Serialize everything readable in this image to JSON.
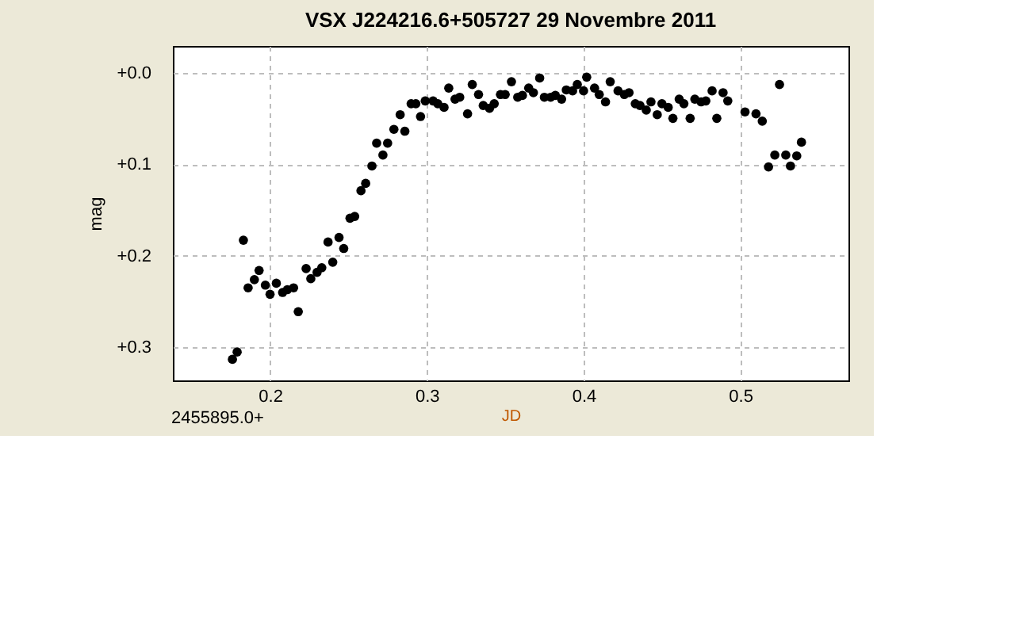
{
  "chart_data": {
    "type": "scatter",
    "title": "VSX J224216.6+505727    29 Novembre 2011",
    "xlabel": "JD",
    "ylabel": "mag",
    "annotations": [
      "2455895.0+"
    ],
    "xlim": [
      0.138,
      0.569
    ],
    "xticks": [
      0.2,
      0.3,
      0.4,
      0.5
    ],
    "ylim": [
      0.336,
      -0.029
    ],
    "yticks": [
      {
        "value": 0,
        "label": "+0.0"
      },
      {
        "value": 0.1,
        "label": "+0.1"
      },
      {
        "value": 0.2,
        "label": "+0.2"
      },
      {
        "value": 0.3,
        "label": "+0.3"
      }
    ],
    "grid": true,
    "marker": "circle",
    "series": [
      {
        "color": "#000000",
        "x": [
          0.176,
          0.179,
          0.183,
          0.186,
          0.19,
          0.193,
          0.197,
          0.2,
          0.204,
          0.208,
          0.211,
          0.215,
          0.218,
          0.223,
          0.226,
          0.23,
          0.233,
          0.237,
          0.24,
          0.244,
          0.247,
          0.251,
          0.254,
          0.258,
          0.261,
          0.265,
          0.268,
          0.272,
          0.275,
          0.279,
          0.283,
          0.286,
          0.29,
          0.293,
          0.296,
          0.299,
          0.304,
          0.307,
          0.311,
          0.314,
          0.318,
          0.321,
          0.326,
          0.329,
          0.333,
          0.336,
          0.34,
          0.343,
          0.347,
          0.35,
          0.354,
          0.358,
          0.361,
          0.365,
          0.368,
          0.372,
          0.375,
          0.379,
          0.382,
          0.386,
          0.389,
          0.393,
          0.396,
          0.4,
          0.402,
          0.407,
          0.41,
          0.414,
          0.417,
          0.422,
          0.426,
          0.429,
          0.433,
          0.436,
          0.44,
          0.443,
          0.447,
          0.45,
          0.454,
          0.457,
          0.461,
          0.464,
          0.468,
          0.471,
          0.475,
          0.478,
          0.482,
          0.485,
          0.489,
          0.492,
          0.503,
          0.51,
          0.514,
          0.518,
          0.522,
          0.525,
          0.529,
          0.532,
          0.536,
          0.539
        ],
        "values": [
          0.313,
          0.305,
          0.183,
          0.235,
          0.226,
          0.216,
          0.232,
          0.242,
          0.23,
          0.24,
          0.237,
          0.235,
          0.261,
          0.214,
          0.225,
          0.218,
          0.213,
          0.185,
          0.207,
          0.18,
          0.192,
          0.159,
          0.157,
          0.129,
          0.121,
          0.102,
          0.077,
          0.09,
          0.077,
          0.062,
          0.046,
          0.064,
          0.034,
          0.034,
          0.048,
          0.031,
          0.031,
          0.034,
          0.038,
          0.017,
          0.029,
          0.027,
          0.045,
          0.013,
          0.024,
          0.036,
          0.039,
          0.034,
          0.024,
          0.024,
          0.01,
          0.027,
          0.025,
          0.017,
          0.022,
          0.006,
          0.027,
          0.027,
          0.025,
          0.029,
          0.019,
          0.02,
          0.013,
          0.02,
          0.005,
          0.017,
          0.024,
          0.032,
          0.01,
          0.02,
          0.024,
          0.022,
          0.034,
          0.036,
          0.041,
          0.032,
          0.046,
          0.034,
          0.038,
          0.05,
          0.029,
          0.034,
          0.05,
          0.029,
          0.032,
          0.031,
          0.02,
          0.05,
          0.022,
          0.031,
          0.043,
          0.045,
          0.053,
          0.103,
          0.09,
          0.013,
          0.09,
          0.102,
          0.091,
          0.076
        ]
      }
    ]
  }
}
